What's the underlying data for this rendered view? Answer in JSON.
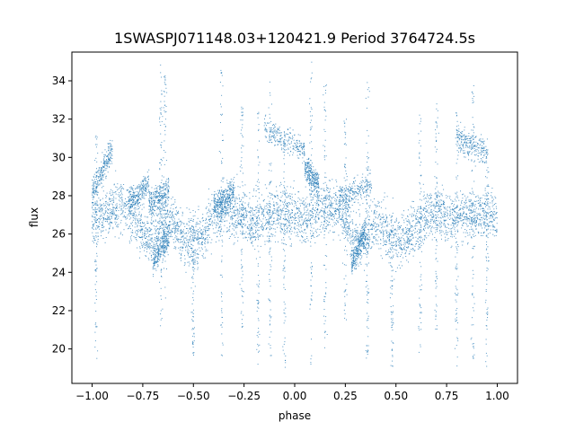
{
  "chart_data": {
    "type": "scatter",
    "title": "1SWASPJ071148.03+120421.9 Period 3764724.5s",
    "xlabel": "phase",
    "ylabel": "flux",
    "xlim": [
      -1.1,
      1.1
    ],
    "ylim": [
      18.2,
      35.5
    ],
    "xticks": [
      -1.0,
      -0.75,
      -0.5,
      -0.25,
      0.0,
      0.25,
      0.5,
      0.75,
      1.0
    ],
    "xtick_labels": [
      "−1.00",
      "−0.75",
      "−0.50",
      "−0.25",
      "0.00",
      "0.25",
      "0.50",
      "0.75",
      "1.00"
    ],
    "yticks": [
      20,
      22,
      24,
      26,
      28,
      30,
      32,
      34
    ],
    "ytick_labels": [
      "20",
      "22",
      "24",
      "26",
      "28",
      "30",
      "32",
      "34"
    ],
    "grid": false,
    "point_color": "#1f77b4",
    "series": [
      {
        "profile_phase": [
          -1.0,
          -0.95,
          -0.9,
          -0.85,
          -0.8,
          -0.75,
          -0.7,
          -0.65,
          -0.6,
          -0.55,
          -0.5,
          -0.45,
          -0.4,
          -0.35,
          -0.3,
          -0.25,
          -0.2,
          -0.15,
          -0.1,
          -0.05,
          0.0,
          0.05,
          0.1,
          0.15,
          0.2,
          0.25,
          0.3,
          0.35,
          0.4,
          0.45,
          0.5,
          0.55,
          0.6,
          0.65,
          0.7,
          0.75,
          0.8,
          0.85,
          0.9,
          0.95,
          1.0
        ],
        "profile_flux": [
          27.0,
          26.8,
          27.3,
          27.5,
          27.0,
          26.0,
          25.5,
          26.8,
          26.5,
          25.8,
          25.6,
          26.0,
          26.8,
          27.4,
          27.2,
          27.0,
          26.6,
          26.9,
          27.1,
          27.0,
          26.9,
          26.8,
          27.2,
          27.3,
          27.5,
          26.8,
          25.6,
          25.8,
          26.6,
          26.2,
          25.7,
          25.9,
          26.3,
          27.0,
          27.3,
          26.8,
          27.0,
          26.9,
          27.1,
          27.0,
          26.8
        ],
        "flux_spread": 1.2,
        "n_points": 4500
      }
    ],
    "bands": [
      {
        "x": [
          -1.0,
          -0.9
        ],
        "flux": [
          28.2,
          30.4
        ]
      },
      {
        "x": [
          -0.82,
          -0.72
        ],
        "flux": [
          27.6,
          28.6
        ]
      },
      {
        "x": [
          -0.72,
          -0.62
        ],
        "flux": [
          27.5,
          28.4
        ]
      },
      {
        "x": [
          -0.7,
          -0.62
        ],
        "flux": [
          24.6,
          26.0
        ]
      },
      {
        "x": [
          -0.4,
          -0.3
        ],
        "flux": [
          27.4,
          28.2
        ]
      },
      {
        "x": [
          -0.15,
          0.05
        ],
        "flux": [
          31.5,
          30.4
        ]
      },
      {
        "x": [
          0.05,
          0.12
        ],
        "flux": [
          29.5,
          28.5
        ]
      },
      {
        "x": [
          0.22,
          0.38
        ],
        "flux": [
          27.8,
          28.6
        ]
      },
      {
        "x": [
          0.28,
          0.35
        ],
        "flux": [
          24.5,
          26.0
        ]
      },
      {
        "x": [
          0.8,
          0.95
        ],
        "flux": [
          31.0,
          30.2
        ]
      }
    ],
    "spikes": [
      {
        "x": -0.98,
        "flux": [
          19.0,
          31.5
        ]
      },
      {
        "x": -0.66,
        "flux": [
          21.0,
          35.0
        ]
      },
      {
        "x": -0.64,
        "flux": [
          22.5,
          34.5
        ]
      },
      {
        "x": -0.5,
        "flux": [
          19.5,
          27.0
        ]
      },
      {
        "x": -0.36,
        "flux": [
          19.5,
          35.0
        ]
      },
      {
        "x": -0.26,
        "flux": [
          21.0,
          33.0
        ]
      },
      {
        "x": -0.18,
        "flux": [
          19.0,
          32.5
        ]
      },
      {
        "x": -0.12,
        "flux": [
          19.5,
          34.0
        ]
      },
      {
        "x": -0.05,
        "flux": [
          19.0,
          31.0
        ]
      },
      {
        "x": 0.08,
        "flux": [
          19.0,
          35.0
        ]
      },
      {
        "x": 0.15,
        "flux": [
          20.0,
          34.0
        ]
      },
      {
        "x": 0.25,
        "flux": [
          21.5,
          32.0
        ]
      },
      {
        "x": 0.36,
        "flux": [
          19.5,
          34.0
        ]
      },
      {
        "x": 0.48,
        "flux": [
          19.0,
          27.0
        ]
      },
      {
        "x": 0.62,
        "flux": [
          19.5,
          32.5
        ]
      },
      {
        "x": 0.7,
        "flux": [
          21.0,
          32.8
        ]
      },
      {
        "x": 0.8,
        "flux": [
          19.0,
          32.5
        ]
      },
      {
        "x": 0.88,
        "flux": [
          19.5,
          34.0
        ]
      },
      {
        "x": 0.95,
        "flux": [
          19.0,
          31.0
        ]
      }
    ]
  }
}
